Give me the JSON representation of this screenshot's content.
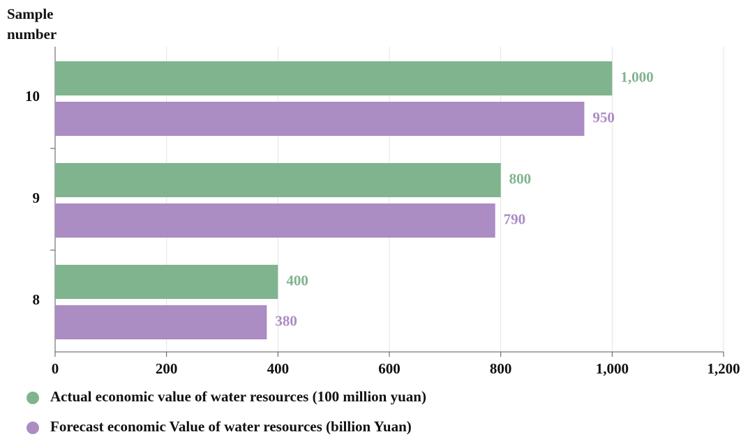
{
  "chart_data": {
    "type": "hbar",
    "y_label": "Sample number",
    "categories": [
      "10",
      "9",
      "8"
    ],
    "series": [
      {
        "name": "Actual economic value of water resources (100 million yuan)",
        "color": "#80b48f",
        "values": [
          1000,
          800,
          400
        ],
        "value_labels": [
          "1,000",
          "800",
          "400"
        ]
      },
      {
        "name": "Forecast economic Value of water resources (billion Yuan)",
        "color": "#ab8cc3",
        "values": [
          950,
          790,
          380
        ],
        "value_labels": [
          "950",
          "790",
          "380"
        ]
      }
    ],
    "xlim": [
      0,
      1200
    ],
    "xticks": [
      0,
      200,
      400,
      600,
      800,
      {
        "value": 1000,
        "label": "1,000"
      },
      {
        "value": 1200,
        "label": "1,200"
      }
    ],
    "grid": true
  }
}
